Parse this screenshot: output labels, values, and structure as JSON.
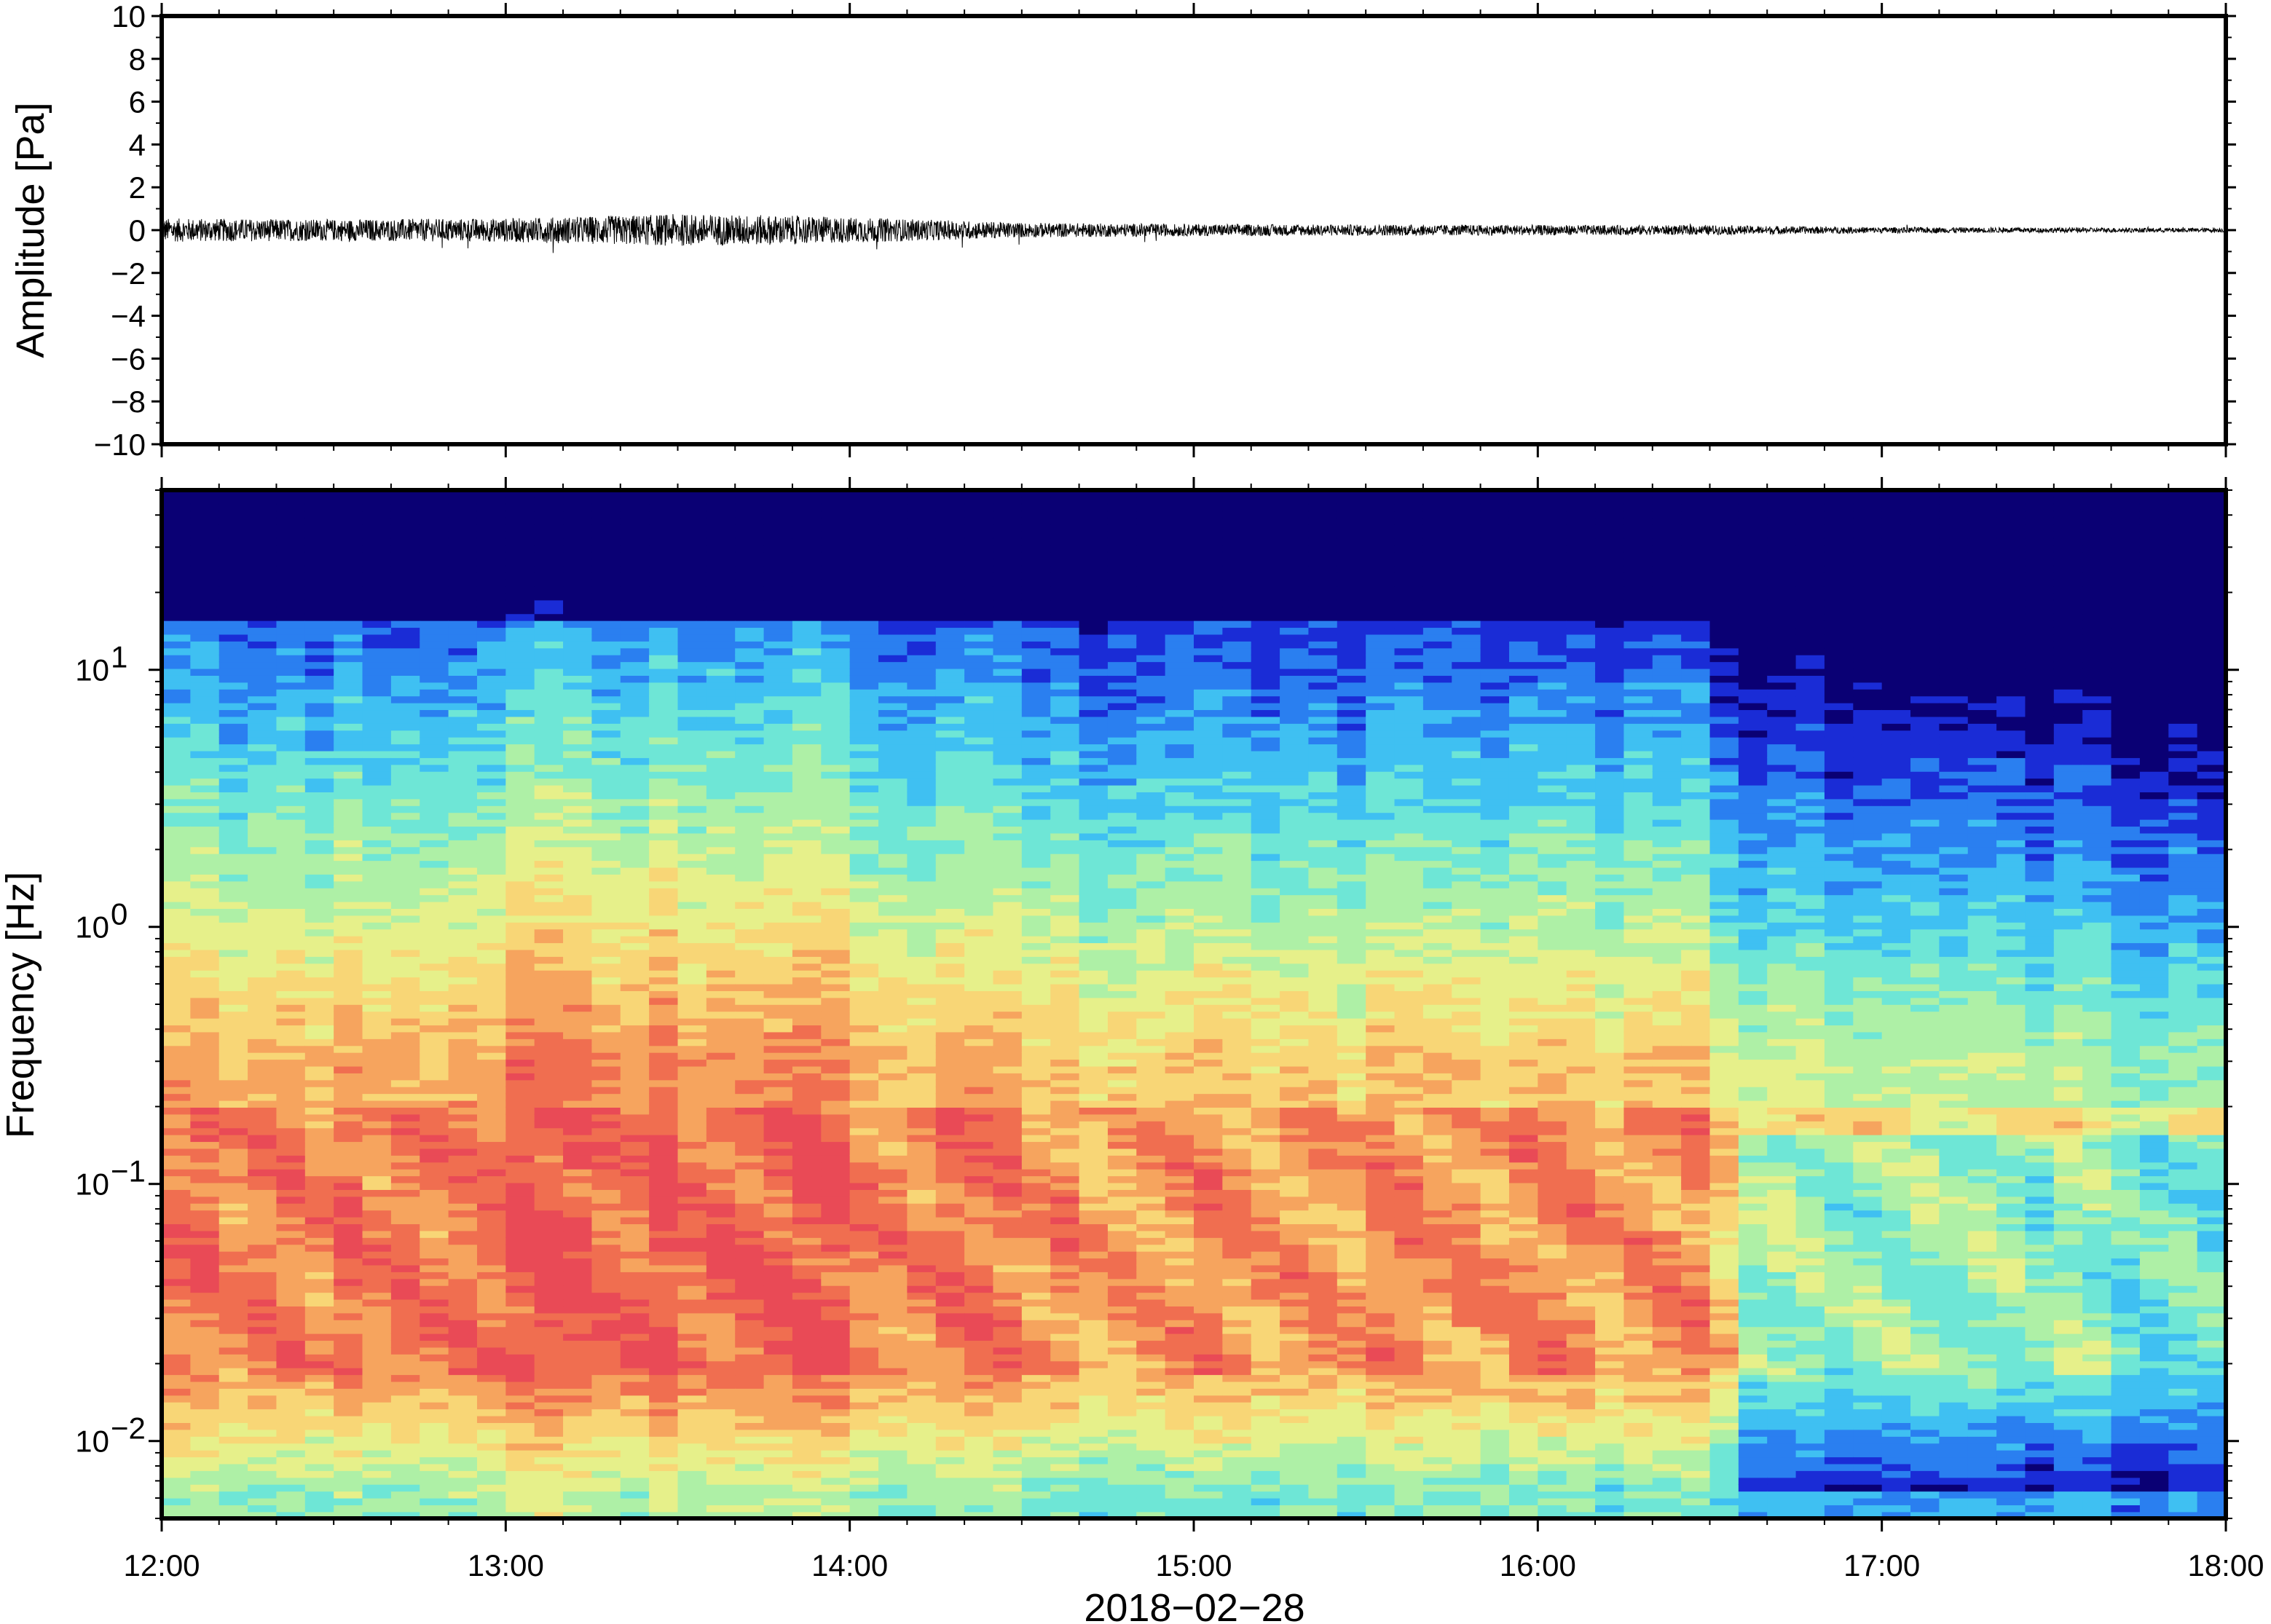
{
  "chart_data": [
    {
      "type": "line",
      "panel": "waveform",
      "ylabel": "Amplitude [Pa]",
      "ylim": [
        -10,
        10
      ],
      "yticks": [
        -10,
        -8,
        -6,
        -4,
        -2,
        0,
        2,
        4,
        6,
        8,
        10
      ],
      "ytick_labels": [
        "−10",
        "−8",
        "−6",
        "−4",
        "−2",
        "0",
        "2",
        "4",
        "6",
        "8",
        "10"
      ],
      "xlim_hours": [
        12,
        18
      ],
      "envelope": {
        "x_hours": [
          12.0,
          12.5,
          13.0,
          13.25,
          13.5,
          13.75,
          14.0,
          14.5,
          15.0,
          15.5,
          16.0,
          16.5,
          17.0,
          17.5,
          18.0
        ],
        "amplitude": [
          0.55,
          0.5,
          0.55,
          0.65,
          0.75,
          0.7,
          0.6,
          0.35,
          0.28,
          0.26,
          0.24,
          0.22,
          0.14,
          0.12,
          0.1
        ]
      },
      "color": "#000000"
    },
    {
      "type": "heatmap",
      "panel": "spectrogram",
      "ylabel": "Frequency [Hz]",
      "yscale": "log",
      "ylim_hz": [
        0.005,
        50
      ],
      "yticks": [
        {
          "value": 10,
          "base": "10",
          "exp": "1"
        },
        {
          "value": 1,
          "base": "10",
          "exp": "0"
        },
        {
          "value": 0.1,
          "base": "10",
          "exp": "−1"
        },
        {
          "value": 0.01,
          "base": "10",
          "exp": "−2"
        }
      ],
      "xlabel": "2018−02−28",
      "xticks": [
        "12:00",
        "13:00",
        "14:00",
        "15:00",
        "16:00",
        "17:00",
        "18:00"
      ],
      "xlim_hours": [
        12,
        18
      ],
      "colormap": [
        "#0a0074",
        "#1a2cd6",
        "#2a7ff0",
        "#3fc0f2",
        "#6ee6d6",
        "#aef0a6",
        "#e6f08a",
        "#f8d676",
        "#f6a45e",
        "#f06e50",
        "#e94a56"
      ],
      "notes_visible": "High energy (red/orange) around 0.02–0.2 Hz, cooling to blue above ~5 Hz"
    }
  ]
}
